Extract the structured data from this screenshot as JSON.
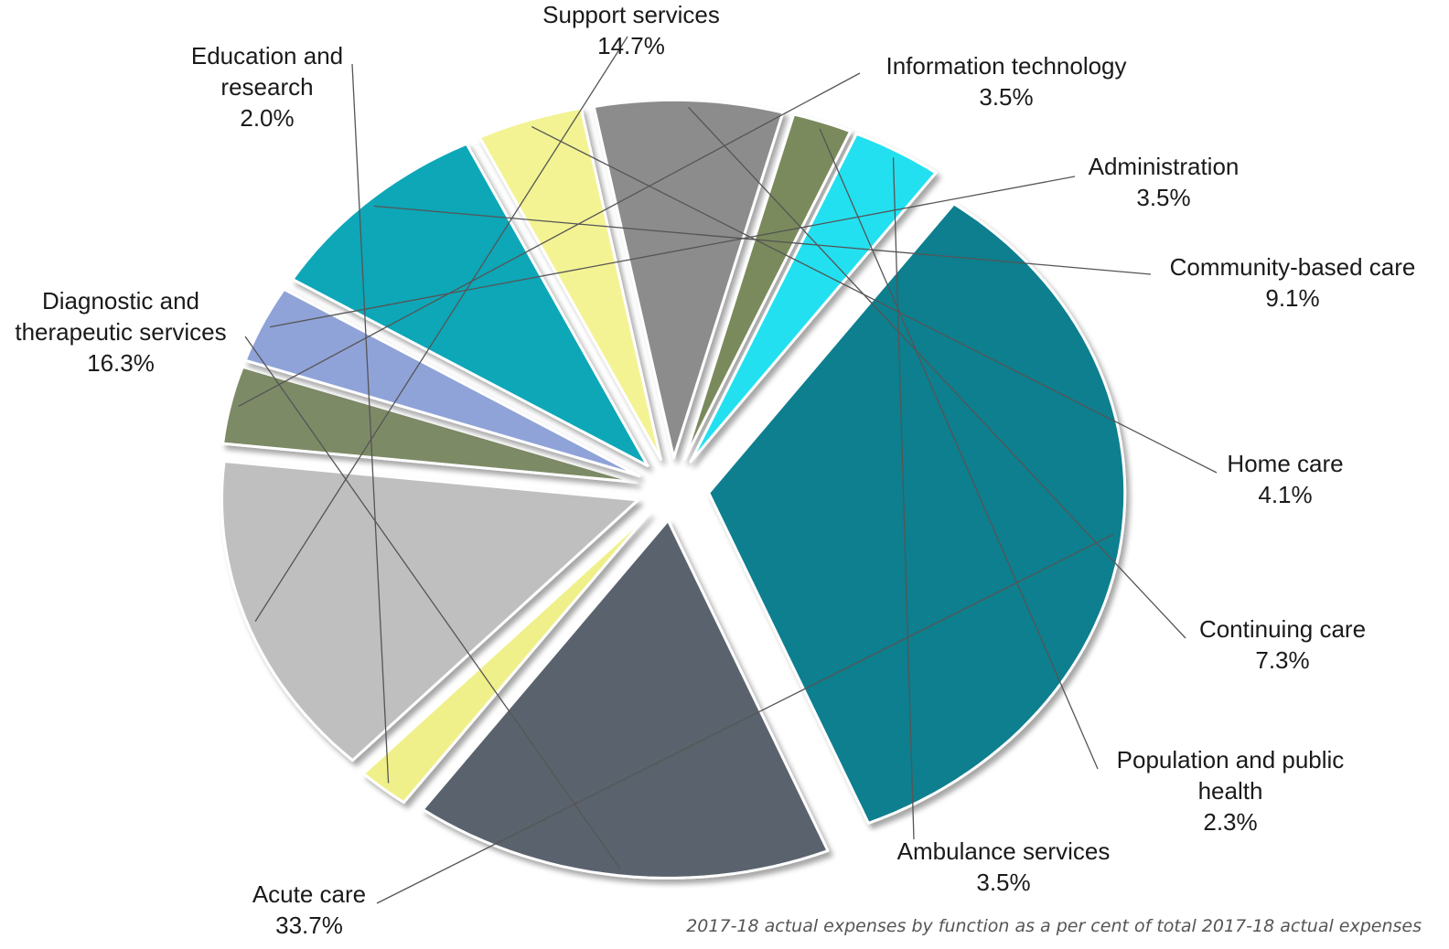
{
  "chart_data": {
    "type": "pie",
    "caption": "2017-18 actual expenses by function as a per cent of total 2017-18 actual expenses",
    "slices": [
      {
        "label": "Acute care",
        "value_text": "33.7%",
        "value": 33.7,
        "color": "#0a7f8f"
      },
      {
        "label": "Diagnostic and therapeutic services",
        "label_lines": [
          "Diagnostic and",
          "therapeutic services"
        ],
        "value_text": "16.3%",
        "value": 16.3,
        "color": "#5a646d"
      },
      {
        "label": "Education and research",
        "label_lines": [
          "Education and",
          "research"
        ],
        "value_text": "2.0%",
        "value": 2.0,
        "color": "#f0f08a"
      },
      {
        "label": "Support services",
        "value_text": "14.7%",
        "value": 14.7,
        "color": "#bfbfbf"
      },
      {
        "label": "Information technology",
        "value_text": "3.5%",
        "value": 3.5,
        "color": "#7d8a66"
      },
      {
        "label": "Administration",
        "value_text": "3.5%",
        "value": 3.5,
        "color": "#8fa3d8"
      },
      {
        "label": "Community-based care",
        "value_text": "9.1%",
        "value": 9.1,
        "color": "#0aa7b8"
      },
      {
        "label": "Home care",
        "value_text": "4.1%",
        "value": 4.1,
        "color": "#f3f394"
      },
      {
        "label": "Continuing care",
        "value_text": "7.3%",
        "value": 7.3,
        "color": "#8c8c8c"
      },
      {
        "label": "Population and public health",
        "label_lines": [
          "Population and public",
          "health"
        ],
        "value_text": "2.3%",
        "value": 2.3,
        "color": "#7a8a5c"
      },
      {
        "label": "Ambulance services",
        "value_text": "3.5%",
        "value": 3.5,
        "color": "#22e0f0"
      }
    ]
  }
}
